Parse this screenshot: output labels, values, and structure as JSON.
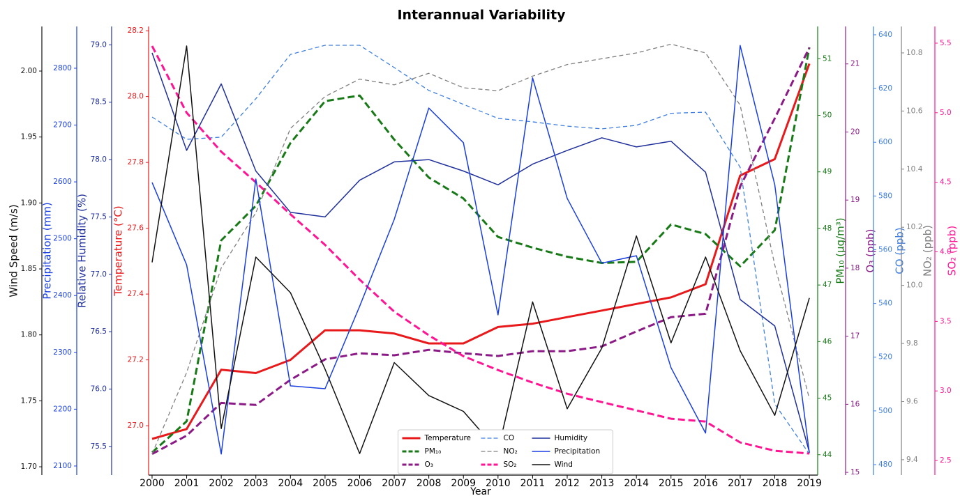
{
  "chart_data": {
    "type": "line",
    "title": "Interannual Variability",
    "xlabel": "Year",
    "x": [
      2000,
      2001,
      2002,
      2003,
      2004,
      2005,
      2006,
      2007,
      2008,
      2009,
      2010,
      2011,
      2012,
      2013,
      2014,
      2015,
      2016,
      2017,
      2018,
      2019
    ],
    "xlim": [
      1999.9,
      2019.24
    ],
    "xticks": [
      2000,
      2001,
      2002,
      2003,
      2004,
      2005,
      2006,
      2007,
      2008,
      2009,
      2010,
      2011,
      2012,
      2013,
      2014,
      2015,
      2016,
      2017,
      2018,
      2019
    ],
    "legend": "lower center",
    "series": [
      {
        "name": "Temperature",
        "color": "#e8191b",
        "linestyle": "solid",
        "linewidth": 3,
        "side": "left",
        "ylabel": "Temperature (°C)",
        "ylim": [
          26.85,
          28.213
        ],
        "yticks": [
          {
            "value": 27.0,
            "label": "27.0"
          },
          27.2,
          27.4,
          27.6,
          27.8,
          {
            "value": 28.0,
            "label": "28.0"
          },
          28.2
        ],
        "values": [
          26.96,
          26.99,
          27.17,
          27.16,
          27.2,
          27.29,
          27.29,
          27.28,
          27.25,
          27.25,
          27.3,
          27.31,
          27.33,
          27.35,
          27.37,
          27.39,
          27.43,
          27.76,
          27.81,
          28.1
        ]
      },
      {
        "name": "PM₁₀",
        "color": "#177a17",
        "linestyle": "dashed",
        "linewidth": 3,
        "side": "right",
        "ylabel": "PM₁₀ (μg/m³)",
        "ylim": [
          43.64,
          51.57
        ],
        "yticks": [
          44,
          45,
          46,
          47,
          48,
          49,
          50,
          51
        ],
        "values": [
          44.04,
          44.59,
          47.79,
          48.4,
          49.51,
          50.25,
          50.35,
          49.57,
          48.9,
          48.53,
          47.85,
          47.66,
          47.5,
          47.39,
          47.41,
          48.07,
          47.9,
          47.33,
          47.97,
          51.2
        ]
      },
      {
        "name": "O₃",
        "color": "#8b1a86",
        "linestyle": "dashed",
        "linewidth": 3,
        "side": "right",
        "ylabel": "O₃ (ppb)",
        "ylim": [
          14.96,
          21.55
        ],
        "yticks": [
          15,
          16,
          17,
          18,
          19,
          20,
          21
        ],
        "values": [
          15.27,
          15.54,
          16.02,
          15.99,
          16.36,
          16.66,
          16.75,
          16.72,
          16.8,
          16.75,
          16.71,
          16.78,
          16.78,
          16.85,
          17.07,
          17.28,
          17.33,
          19.2,
          20.2,
          21.24
        ]
      },
      {
        "name": "CO",
        "color": "#3f7fe0",
        "linestyle": "dashed",
        "linewidth": 1.3,
        "side": "right",
        "ylabel": "CO (ppb)",
        "ylim": [
          476.1,
          643.1
        ],
        "yticks": [
          480,
          500,
          520,
          540,
          560,
          580,
          600,
          620,
          640
        ],
        "values": [
          609.4,
          601.1,
          601.9,
          616.2,
          632.7,
          636.1,
          636.1,
          627.8,
          619.3,
          614.1,
          608.9,
          607.6,
          606.0,
          605.0,
          606.3,
          610.8,
          611.2,
          590.7,
          502.6,
          483.9
        ]
      },
      {
        "name": "NO₂",
        "color": "#808080",
        "linestyle": "dashed",
        "linewidth": 1.3,
        "side": "right",
        "ylabel": "NO₂ (ppb)",
        "ylim": [
          9.347,
          10.891
        ],
        "yticks": [
          9.4,
          9.6,
          9.8,
          {
            "value": 10.0,
            "label": "10.0"
          },
          10.2,
          10.4,
          10.6,
          10.8
        ],
        "values": [
          9.42,
          9.7,
          10.06,
          10.25,
          10.54,
          10.65,
          10.71,
          10.69,
          10.73,
          10.68,
          10.67,
          10.72,
          10.76,
          10.78,
          10.8,
          10.83,
          10.8,
          10.62,
          10.07,
          9.61
        ]
      },
      {
        "name": "SO₂",
        "color": "#ff1493",
        "linestyle": "dashed",
        "linewidth": 3,
        "side": "right",
        "ylabel": "SO₂ (ppb)",
        "ylim": [
          2.395,
          5.62
        ],
        "yticks": [
          2.5,
          {
            "value": 3.0,
            "label": "3.0"
          },
          3.5,
          {
            "value": 4.0,
            "label": "4.0"
          },
          4.5,
          {
            "value": 5.0,
            "label": "5.0"
          },
          5.5
        ],
        "values": [
          5.48,
          5.0,
          4.72,
          4.5,
          4.27,
          4.05,
          3.8,
          3.57,
          3.4,
          3.25,
          3.15,
          3.06,
          2.98,
          2.92,
          2.86,
          2.8,
          2.78,
          2.63,
          2.57,
          2.55
        ]
      },
      {
        "name": "Humidity",
        "color": "#1f2f9c",
        "linestyle": "solid",
        "linewidth": 1.5,
        "side": "left",
        "ylabel": "Relative Humidity (%)",
        "ylim": [
          75.25,
          79.16
        ],
        "yticks": [
          75.5,
          {
            "value": 76.0,
            "label": "76.0"
          },
          76.5,
          {
            "value": 77.0,
            "label": "77.0"
          },
          77.5,
          {
            "value": 78.0,
            "label": "78.0"
          },
          78.5,
          {
            "value": 79.0,
            "label": "79.0"
          }
        ],
        "values": [
          78.93,
          78.08,
          78.66,
          77.9,
          77.54,
          77.5,
          77.82,
          77.98,
          78.0,
          77.9,
          77.78,
          77.96,
          78.08,
          78.19,
          78.11,
          78.16,
          77.89,
          76.78,
          76.55,
          75.45
        ]
      },
      {
        "name": "Precipitation",
        "color": "#1a3fe0",
        "linestyle": "solid",
        "linewidth": 1.5,
        "side": "left",
        "ylabel": "Precipitation (mm)",
        "ylim": [
          2084,
          2873.5
        ],
        "yticks": [
          2100,
          2200,
          2300,
          2400,
          2500,
          2600,
          2700,
          2800
        ],
        "values": [
          2599,
          2454,
          2121,
          2605,
          2241,
          2236,
          2381,
          2534,
          2730,
          2669,
          2366,
          2783,
          2571,
          2457,
          2470,
          2273,
          2158,
          2840,
          2595,
          2123
        ]
      },
      {
        "name": "Wind",
        "color": "#111111",
        "linestyle": "solid",
        "linewidth": 1.5,
        "side": "left",
        "ylabel": "Wind Speed (m/s)",
        "ylim": [
          1.6937,
          2.0338
        ],
        "yticks": [
          {
            "value": 1.7,
            "label": "1.70"
          },
          1.75,
          {
            "value": 1.8,
            "label": "1.80"
          },
          1.85,
          {
            "value": 1.9,
            "label": "1.90"
          },
          1.95,
          {
            "value": 2.0,
            "label": "2.00"
          }
        ],
        "values": [
          1.855,
          2.019,
          1.729,
          1.859,
          1.832,
          1.774,
          1.71,
          1.779,
          1.754,
          1.742,
          1.712,
          1.825,
          1.744,
          1.79,
          1.875,
          1.794,
          1.859,
          1.788,
          1.739,
          1.828
        ]
      }
    ]
  }
}
